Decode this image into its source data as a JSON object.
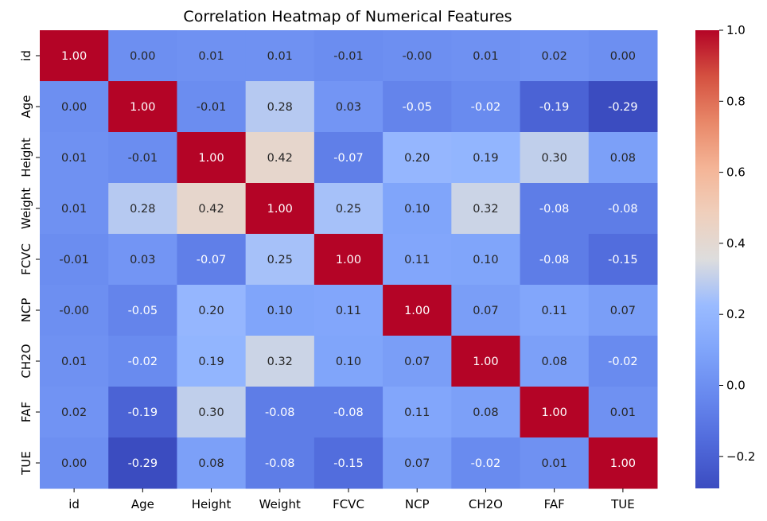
{
  "chart_data": {
    "type": "heatmap",
    "title": "Correlation Heatmap of Numerical Features",
    "xlabel": "",
    "ylabel": "",
    "x_labels": [
      "id",
      "Age",
      "Height",
      "Weight",
      "FCVC",
      "NCP",
      "CH2O",
      "FAF",
      "TUE"
    ],
    "y_labels": [
      "id",
      "Age",
      "Height",
      "Weight",
      "FCVC",
      "NCP",
      "CH2O",
      "FAF",
      "TUE"
    ],
    "values": [
      [
        1.0,
        0.0,
        0.01,
        0.01,
        -0.01,
        -0.0,
        0.01,
        0.02,
        0.0
      ],
      [
        0.0,
        1.0,
        -0.01,
        0.28,
        0.03,
        -0.05,
        -0.02,
        -0.19,
        -0.29
      ],
      [
        0.01,
        -0.01,
        1.0,
        0.42,
        -0.07,
        0.2,
        0.19,
        0.3,
        0.08
      ],
      [
        0.01,
        0.28,
        0.42,
        1.0,
        0.25,
        0.1,
        0.32,
        -0.08,
        -0.08
      ],
      [
        -0.01,
        0.03,
        -0.07,
        0.25,
        1.0,
        0.11,
        0.1,
        -0.08,
        -0.15
      ],
      [
        -0.0,
        -0.05,
        0.2,
        0.1,
        0.11,
        1.0,
        0.07,
        0.11,
        0.07
      ],
      [
        0.01,
        -0.02,
        0.19,
        0.32,
        0.1,
        0.07,
        1.0,
        0.08,
        -0.02
      ],
      [
        0.02,
        -0.19,
        0.3,
        -0.08,
        -0.08,
        0.11,
        0.08,
        1.0,
        0.01
      ],
      [
        0.0,
        -0.29,
        0.08,
        -0.08,
        -0.15,
        0.07,
        -0.02,
        0.01,
        1.0
      ]
    ],
    "value_labels": [
      [
        "1.00",
        "0.00",
        "0.01",
        "0.01",
        "-0.01",
        "-0.00",
        "0.01",
        "0.02",
        "0.00"
      ],
      [
        "0.00",
        "1.00",
        "-0.01",
        "0.28",
        "0.03",
        "-0.05",
        "-0.02",
        "-0.19",
        "-0.29"
      ],
      [
        "0.01",
        "-0.01",
        "1.00",
        "0.42",
        "-0.07",
        "0.20",
        "0.19",
        "0.30",
        "0.08"
      ],
      [
        "0.01",
        "0.28",
        "0.42",
        "1.00",
        "0.25",
        "0.10",
        "0.32",
        "-0.08",
        "-0.08"
      ],
      [
        "-0.01",
        "0.03",
        "-0.07",
        "0.25",
        "1.00",
        "0.11",
        "0.10",
        "-0.08",
        "-0.15"
      ],
      [
        "-0.00",
        "-0.05",
        "0.20",
        "0.10",
        "0.11",
        "1.00",
        "0.07",
        "0.11",
        "0.07"
      ],
      [
        "0.01",
        "-0.02",
        "0.19",
        "0.32",
        "0.10",
        "0.07",
        "1.00",
        "0.08",
        "-0.02"
      ],
      [
        "0.02",
        "-0.19",
        "0.30",
        "-0.08",
        "-0.08",
        "0.11",
        "0.08",
        "1.00",
        "0.01"
      ],
      [
        "0.00",
        "-0.29",
        "0.08",
        "-0.08",
        "-0.15",
        "0.07",
        "-0.02",
        "0.01",
        "1.00"
      ]
    ],
    "colorbar": {
      "colormap": "coolwarm",
      "vmin": -0.29,
      "vmax": 1.0,
      "ticks": [
        1.0,
        0.8,
        0.6,
        0.4,
        0.2,
        0.0,
        -0.2
      ],
      "tick_labels": [
        "1.0",
        "0.8",
        "0.6",
        "0.4",
        "0.2",
        "0.0",
        "−0.2"
      ]
    },
    "grid": false,
    "legend": "colorbar-right"
  }
}
